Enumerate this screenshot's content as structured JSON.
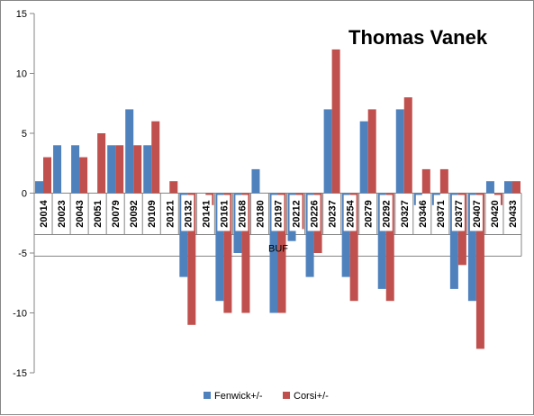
{
  "chart_data": {
    "type": "bar",
    "title": "Thomas Vanek",
    "xlabel": "BUF",
    "ylabel": "",
    "ylim": [
      -15,
      15
    ],
    "yticks": [
      -15,
      -10,
      -5,
      0,
      5,
      10,
      15
    ],
    "grid": false,
    "legend_position": "bottom",
    "categories": [
      "20014",
      "20023",
      "20043",
      "20051",
      "20079",
      "20092",
      "20109",
      "20121",
      "20132",
      "20141",
      "20161",
      "20168",
      "20180",
      "20197",
      "20212",
      "20226",
      "20237",
      "20254",
      "20279",
      "20292",
      "20327",
      "20346",
      "20371",
      "20377",
      "20407",
      "20420",
      "20433"
    ],
    "series": [
      {
        "name": "Fenwick+/-",
        "color": "#4F81BD",
        "values": [
          1,
          4,
          4,
          0,
          4,
          7,
          4,
          0,
          -7,
          0,
          -9,
          -5,
          2,
          -10,
          -4,
          -7,
          7,
          -7,
          6,
          -8,
          7,
          -1,
          -1,
          -8,
          -9,
          1,
          1
        ]
      },
      {
        "name": "Corsi+/-",
        "color": "#C0504D",
        "values": [
          3,
          0,
          3,
          5,
          4,
          4,
          6,
          1,
          -11,
          -1,
          -10,
          -10,
          0,
          -10,
          -3,
          -5,
          12,
          -9,
          7,
          -9,
          8,
          2,
          2,
          -6,
          -13,
          -1,
          1
        ]
      }
    ]
  }
}
